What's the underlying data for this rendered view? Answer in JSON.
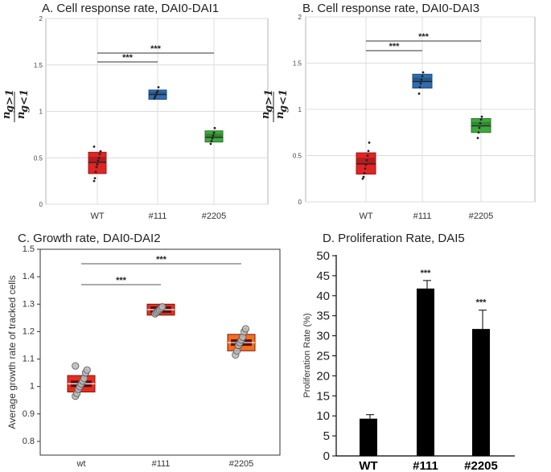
{
  "chart_data": [
    {
      "type": "box",
      "panel": "A",
      "title": "A. Cell response rate, DAI0-DAI1",
      "ylabel_numerator": "n",
      "ylabel_numerator_sub": "g>1",
      "ylabel_denominator": "n",
      "ylabel_denominator_sub": "g<1",
      "ylim": [
        0,
        2
      ],
      "yticks": [
        "0",
        "0.5",
        "1",
        "1.5",
        "2"
      ],
      "categories": [
        "WT",
        "#111",
        "#2205"
      ],
      "series": [
        {
          "name": "WT",
          "color": "#e02424",
          "q1": 0.33,
          "median": 0.45,
          "q3": 0.56,
          "points": [
            0.25,
            0.28,
            0.35,
            0.4,
            0.43,
            0.47,
            0.5,
            0.54,
            0.57,
            0.62
          ]
        },
        {
          "name": "#111",
          "color": "#2f6db0",
          "q1": 1.13,
          "median": 1.18,
          "q3": 1.23,
          "points": [
            1.14,
            1.16,
            1.18,
            1.2,
            1.22,
            1.26
          ]
        },
        {
          "name": "#2205",
          "color": "#3ea83e",
          "q1": 0.67,
          "median": 0.72,
          "q3": 0.79,
          "points": [
            0.65,
            0.68,
            0.71,
            0.74,
            0.77,
            0.82
          ]
        }
      ],
      "significance": [
        {
          "from": "WT",
          "to": "#111",
          "label": "***"
        },
        {
          "from": "WT",
          "to": "#2205",
          "label": "***"
        }
      ]
    },
    {
      "type": "box",
      "panel": "B",
      "title": "B. Cell response rate, DAI0-DAI3",
      "ylabel_numerator": "n",
      "ylabel_numerator_sub": "g>1",
      "ylabel_denominator": "n",
      "ylabel_denominator_sub": "g<1",
      "ylim": [
        0,
        2
      ],
      "yticks": [
        "0",
        "0.5",
        "1",
        "1.5",
        "2"
      ],
      "categories": [
        "WT",
        "#111",
        "#2205"
      ],
      "series": [
        {
          "name": "WT",
          "color": "#e02424",
          "q1": 0.3,
          "median": 0.41,
          "q3": 0.53,
          "points": [
            0.25,
            0.27,
            0.31,
            0.36,
            0.4,
            0.45,
            0.5,
            0.55,
            0.64
          ]
        },
        {
          "name": "#111",
          "color": "#2f6db0",
          "q1": 1.23,
          "median": 1.3,
          "q3": 1.38,
          "points": [
            1.17,
            1.24,
            1.28,
            1.32,
            1.36,
            1.4
          ]
        },
        {
          "name": "#2205",
          "color": "#3ea83e",
          "q1": 0.75,
          "median": 0.82,
          "q3": 0.9,
          "points": [
            0.69,
            0.75,
            0.8,
            0.85,
            0.89,
            0.92
          ]
        }
      ],
      "significance": [
        {
          "from": "WT",
          "to": "#111",
          "label": "***"
        },
        {
          "from": "WT",
          "to": "#2205",
          "label": "***"
        }
      ]
    },
    {
      "type": "box",
      "panel": "C",
      "title": "C. Growth rate, DAI0-DAI2",
      "ylabel": "Average growth rate of tracked cells",
      "ylim": [
        0.75,
        1.5
      ],
      "yticks": [
        "0.8",
        "0.9",
        "1",
        "1.1",
        "1.2",
        "1.3",
        "1.4",
        "1.5"
      ],
      "categories": [
        "wt",
        "#111",
        "#2205"
      ],
      "series": [
        {
          "name": "wt",
          "color": "#e62e1f",
          "q1": 0.98,
          "median": 1.01,
          "q3": 1.04,
          "points": [
            0.965,
            0.975,
            0.99,
            1.0,
            1.01,
            1.02,
            1.03,
            1.05,
            1.06,
            1.075
          ]
        },
        {
          "name": "#111",
          "color": "#e62e1f",
          "q1": 1.26,
          "median": 1.28,
          "q3": 1.3,
          "points": [
            1.265,
            1.27,
            1.275,
            1.28,
            1.285,
            1.29
          ]
        },
        {
          "name": "#2205",
          "color": "#f07020",
          "q1": 1.13,
          "median": 1.16,
          "q3": 1.19,
          "points": [
            1.115,
            1.13,
            1.15,
            1.16,
            1.17,
            1.18,
            1.2,
            1.21
          ]
        }
      ],
      "significance": [
        {
          "from": "wt",
          "to": "#111",
          "label": "***"
        },
        {
          "from": "wt",
          "to": "#2205",
          "label": "***"
        }
      ]
    },
    {
      "type": "bar",
      "panel": "D",
      "title": "D. Proliferation Rate, DAI5",
      "ylabel": "Proliferation Rate (%)",
      "ylim": [
        0,
        50
      ],
      "yticks": [
        "0",
        "5",
        "10",
        "15",
        "20",
        "25",
        "30",
        "35",
        "40",
        "45",
        "50"
      ],
      "categories": [
        "WT",
        "#111",
        "#2205"
      ],
      "values": [
        9.3,
        41.8,
        31.7
      ],
      "errors": [
        1.0,
        2.0,
        4.7
      ],
      "annotations": [
        "",
        "***",
        "***"
      ]
    }
  ]
}
